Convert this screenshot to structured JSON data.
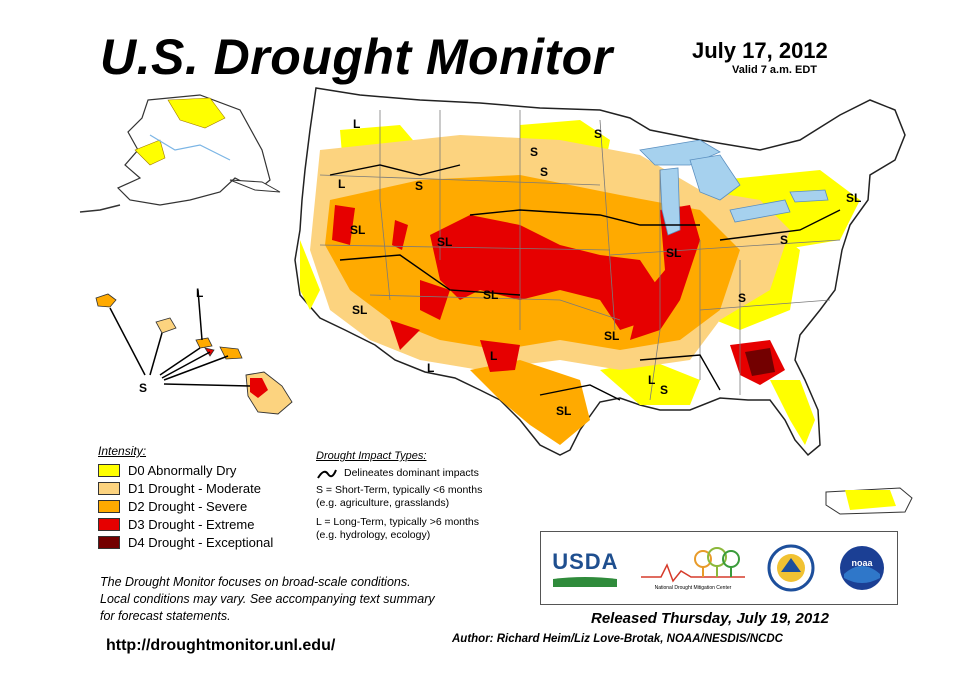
{
  "header": {
    "title": "U.S. Drought Monitor",
    "date": "July 17, 2012",
    "valid": "Valid 7 a.m. EDT"
  },
  "legend": {
    "title": "Intensity:",
    "items": [
      {
        "label": "D0 Abnormally Dry",
        "color": "#ffff00"
      },
      {
        "label": "D1 Drought - Moderate",
        "color": "#fcd37f"
      },
      {
        "label": "D2 Drought - Severe",
        "color": "#ffaa00"
      },
      {
        "label": "D3 Drought - Extreme",
        "color": "#e60000"
      },
      {
        "label": "D4 Drought - Exceptional",
        "color": "#730000"
      }
    ]
  },
  "impacts": {
    "title": "Drought Impact Types:",
    "delineates": "Delineates dominant impacts",
    "short_term_1": "S = Short-Term, typically <6 months",
    "short_term_2": "(e.g. agriculture, grasslands)",
    "long_term_1": "L = Long-Term, typically >6 months",
    "long_term_2": "(e.g. hydrology, ecology)"
  },
  "note": {
    "line1": "The Drought Monitor focuses on broad-scale conditions.",
    "line2": "Local conditions may vary. See accompanying text summary",
    "line3": "for forecast statements."
  },
  "url": "http://droughtmonitor.unl.edu/",
  "footer": {
    "released": "Released Thursday, July 19, 2012",
    "author": "Author: Richard Heim/Liz Love-Brotak, NOAA/NESDIS/NCDC"
  },
  "logos": {
    "usda": "USDA",
    "ndmc": "National Drought Mitigation Center",
    "noaa": "noaa"
  },
  "map_labels": {
    "L": "L",
    "S": "S",
    "SL": "SL"
  },
  "colors": {
    "water": "#a6d1ee",
    "land": "#ffffff",
    "d0": "#ffff00",
    "d1": "#fcd37f",
    "d2": "#ffaa00",
    "d3": "#e60000",
    "d4": "#730000"
  }
}
